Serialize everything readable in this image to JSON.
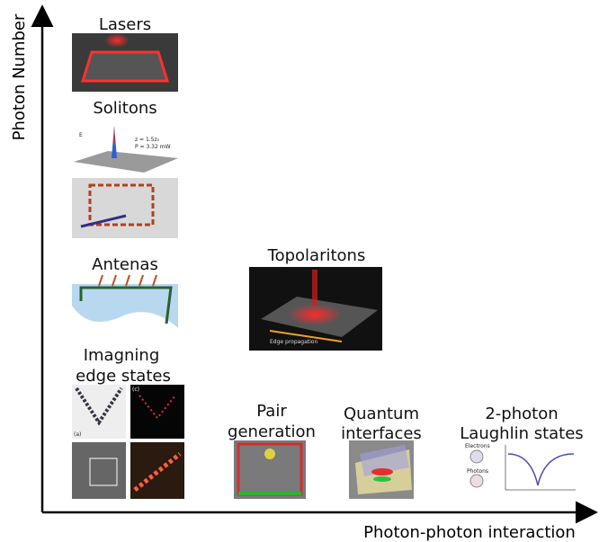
{
  "axes": {
    "y_label": "Photon Number",
    "x_label": "Photon-photon interaction"
  },
  "panels": [
    {
      "title": [
        "Lasers"
      ]
    },
    {
      "title": [
        "Solitons"
      ],
      "inset_texts": [
        "E",
        "z = 1.5z₀",
        "P = 3.32 mW"
      ]
    },
    {
      "title": [
        "Antenas"
      ]
    },
    {
      "title": [
        "Topolaritons"
      ],
      "inset_texts": [
        "Edge propagation"
      ]
    },
    {
      "title": [
        "Imagning",
        "edge states"
      ],
      "inset_texts": [
        "(a)",
        "(c)"
      ]
    },
    {
      "title": [
        "Pair",
        "generation"
      ]
    },
    {
      "title": [
        "Quantum",
        "interfaces"
      ]
    },
    {
      "title": [
        "2-photon",
        "Laughlin states"
      ],
      "inset_texts": [
        "Electrons",
        "Photons"
      ]
    }
  ]
}
